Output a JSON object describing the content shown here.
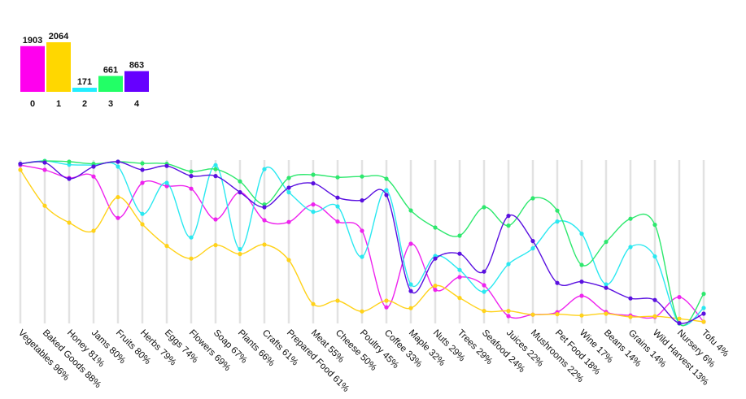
{
  "chart_data": [
    {
      "type": "bar",
      "categories": [
        "0",
        "1",
        "2",
        "3",
        "4"
      ],
      "values": [
        1903,
        2064,
        171,
        661,
        863
      ],
      "colors": [
        "#ff00ee",
        "#ffd700",
        "#22eeff",
        "#22ff66",
        "#6600ff"
      ],
      "ylim": [
        0,
        2064
      ]
    },
    {
      "type": "line",
      "categories": [
        "Vegetables 96%",
        "Baked Goods 88%",
        "Honey 81%",
        "Jams 80%",
        "Fruits 80%",
        "Herbs 79%",
        "Eggs 74%",
        "Flowers 69%",
        "Soap 67%",
        "Plants 66%",
        "Crafts 61%",
        "Prepared Food 61%",
        "Meat 55%",
        "Cheese 50%",
        "Poultry 45%",
        "Coffee 33%",
        "Maple 32%",
        "Nuts 29%",
        "Trees 29%",
        "Seafood 24%",
        "Juices 22%",
        "Mushrooms 22%",
        "Pet Food 18%",
        "Wine 17%",
        "Beans 14%",
        "Grains 14%",
        "Wild Harvest 13%",
        "Nursery 6%",
        "Tofu 4%"
      ],
      "ylim": [
        0,
        100
      ],
      "grid": "vertical",
      "series": [
        {
          "name": "0",
          "color": "#ee22ee",
          "values": [
            97.4,
            94.5,
            89.5,
            90.4,
            64.9,
            86.5,
            84.5,
            82.9,
            64,
            80.7,
            63.5,
            62.4,
            73.2,
            62.7,
            57,
            9.9,
            49,
            20.7,
            28.5,
            23.5,
            4.5,
            5.4,
            6.9,
            17,
            7,
            4.9,
            4,
            16.2,
            1
          ]
        },
        {
          "name": "1",
          "color": "#ffd21a",
          "values": [
            94.5,
            72.4,
            62,
            57,
            77.7,
            61,
            47.7,
            39.9,
            48.2,
            42.7,
            48.5,
            39,
            11.9,
            14,
            7.4,
            14,
            9.4,
            23.2,
            15.7,
            7.7,
            7.7,
            5.4,
            5.7,
            4.9,
            6,
            4,
            4.4,
            2.9,
            1
          ]
        },
        {
          "name": "2",
          "color": "#2ae8f0",
          "values": [
            98.2,
            100,
            97.7,
            97.4,
            96.5,
            67.4,
            86.5,
            52.9,
            97.4,
            45.7,
            94.9,
            80.7,
            68.7,
            72,
            41,
            82,
            24,
            41.5,
            32.9,
            19.5,
            36.5,
            46.2,
            62.7,
            55.2,
            24,
            47,
            41.2,
            0,
            9.5
          ]
        },
        {
          "name": "3",
          "color": "#2ee86e",
          "values": [
            98.2,
            99.9,
            99.5,
            98.2,
            99.5,
            98.5,
            98.2,
            93.5,
            94.9,
            87.4,
            73.2,
            89.5,
            91.5,
            89.9,
            90.4,
            89,
            69.5,
            59,
            54,
            71.5,
            60.2,
            77,
            69.4,
            36,
            50.2,
            64.4,
            60.7,
            0,
            18.2
          ]
        },
        {
          "name": "4",
          "color": "#5a10e0",
          "values": [
            98.2,
            99,
            89,
            96.5,
            99.5,
            94.5,
            96.9,
            90.7,
            90.7,
            80.7,
            71.5,
            83.5,
            86.2,
            77.4,
            75.7,
            79,
            19.9,
            39.9,
            42.9,
            31.9,
            66.2,
            50.7,
            24.9,
            25.7,
            21.9,
            15.4,
            14.4,
            0.2,
            6
          ]
        }
      ]
    }
  ]
}
